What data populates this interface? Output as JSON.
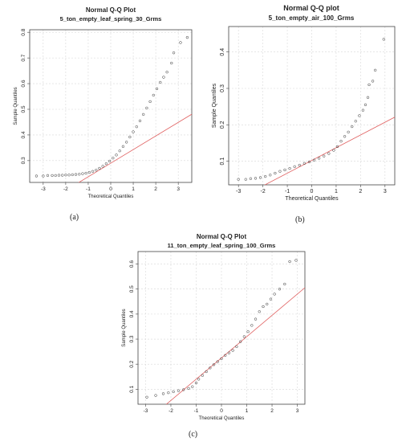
{
  "chart_data": [
    {
      "type": "scatter",
      "panel": "(a)",
      "title": "Normal Q-Q Plot",
      "subtitle": "5_ton_empty_leaf_spring_30_Grms",
      "xlabel": "Theoretical Quantiles",
      "ylabel": "Sample Quantiles",
      "xlim": [
        -3.6,
        3.6
      ],
      "ylim": [
        0.215,
        0.81
      ],
      "xticks": [
        -3,
        -2,
        -1,
        0,
        1,
        2,
        3
      ],
      "yticks": [
        0.3,
        0.4,
        0.5,
        0.6,
        0.7,
        0.8
      ],
      "grid": true,
      "reference_line": {
        "slope": 0.053,
        "intercept": 0.29,
        "color": "#e06060"
      },
      "points": [
        [
          -3.3,
          0.24
        ],
        [
          -3.0,
          0.24
        ],
        [
          -2.8,
          0.242
        ],
        [
          -2.6,
          0.242
        ],
        [
          -2.45,
          0.242
        ],
        [
          -2.3,
          0.243
        ],
        [
          -2.15,
          0.243
        ],
        [
          -2.0,
          0.244
        ],
        [
          -1.85,
          0.244
        ],
        [
          -1.7,
          0.245
        ],
        [
          -1.55,
          0.246
        ],
        [
          -1.4,
          0.247
        ],
        [
          -1.25,
          0.249
        ],
        [
          -1.1,
          0.251
        ],
        [
          -0.95,
          0.254
        ],
        [
          -0.8,
          0.258
        ],
        [
          -0.65,
          0.263
        ],
        [
          -0.5,
          0.27
        ],
        [
          -0.35,
          0.278
        ],
        [
          -0.2,
          0.288
        ],
        [
          -0.05,
          0.298
        ],
        [
          0.1,
          0.31
        ],
        [
          0.25,
          0.322
        ],
        [
          0.4,
          0.338
        ],
        [
          0.55,
          0.355
        ],
        [
          0.7,
          0.372
        ],
        [
          0.85,
          0.392
        ],
        [
          1.0,
          0.412
        ],
        [
          1.15,
          0.432
        ],
        [
          1.3,
          0.455
        ],
        [
          1.45,
          0.48
        ],
        [
          1.6,
          0.505
        ],
        [
          1.75,
          0.53
        ],
        [
          1.9,
          0.555
        ],
        [
          2.05,
          0.58
        ],
        [
          2.2,
          0.605
        ],
        [
          2.35,
          0.625
        ],
        [
          2.5,
          0.645
        ],
        [
          2.7,
          0.68
        ],
        [
          2.8,
          0.72
        ],
        [
          3.1,
          0.76
        ],
        [
          3.4,
          0.78
        ]
      ]
    },
    {
      "type": "scatter",
      "panel": "(b)",
      "title": "Normal Q-Q plot",
      "subtitle": "5_ton_empty_air_100_Grms",
      "xlabel": "Theoretical Quantiles",
      "ylabel": "Sample Quantiles",
      "xlim": [
        -3.4,
        3.4
      ],
      "ylim": [
        0.035,
        0.47
      ],
      "xticks": [
        -3,
        -2,
        -1,
        0,
        1,
        2,
        3
      ],
      "yticks": [
        0.1,
        0.2,
        0.3,
        0.4
      ],
      "grid": true,
      "reference_line": {
        "slope": 0.035,
        "intercept": 0.102,
        "color": "#e06060"
      },
      "points": [
        [
          -3.0,
          0.05
        ],
        [
          -2.7,
          0.05
        ],
        [
          -2.5,
          0.052
        ],
        [
          -2.3,
          0.053
        ],
        [
          -2.1,
          0.055
        ],
        [
          -1.9,
          0.058
        ],
        [
          -1.7,
          0.062
        ],
        [
          -1.5,
          0.067
        ],
        [
          -1.3,
          0.072
        ],
        [
          -1.1,
          0.076
        ],
        [
          -0.9,
          0.08
        ],
        [
          -0.7,
          0.085
        ],
        [
          -0.5,
          0.089
        ],
        [
          -0.3,
          0.094
        ],
        [
          -0.1,
          0.098
        ],
        [
          0.1,
          0.103
        ],
        [
          0.3,
          0.108
        ],
        [
          0.5,
          0.114
        ],
        [
          0.7,
          0.121
        ],
        [
          0.9,
          0.13
        ],
        [
          1.05,
          0.14
        ],
        [
          1.2,
          0.155
        ],
        [
          1.35,
          0.168
        ],
        [
          1.5,
          0.18
        ],
        [
          1.65,
          0.195
        ],
        [
          1.8,
          0.21
        ],
        [
          1.95,
          0.225
        ],
        [
          2.1,
          0.24
        ],
        [
          2.2,
          0.255
        ],
        [
          2.3,
          0.275
        ],
        [
          2.35,
          0.31
        ],
        [
          2.5,
          0.32
        ],
        [
          2.6,
          0.35
        ],
        [
          2.95,
          0.435
        ]
      ]
    },
    {
      "type": "scatter",
      "panel": "(c)",
      "title": "Normal Q-Q Plot",
      "subtitle": "11_ton_empty_leaf_spring_100_Grms",
      "xlabel": "Theoretical Quantiles",
      "ylabel": "Sample Quantiles",
      "xlim": [
        -3.3,
        3.3
      ],
      "ylim": [
        0.04,
        0.65
      ],
      "xticks": [
        -3,
        -2,
        -1,
        0,
        1,
        2,
        3
      ],
      "yticks": [
        0.1,
        0.2,
        0.3,
        0.4,
        0.5,
        0.6
      ],
      "grid": true,
      "reference_line": {
        "slope": 0.085,
        "intercept": 0.225,
        "color": "#e06060"
      },
      "points": [
        [
          -2.95,
          0.068
        ],
        [
          -2.6,
          0.075
        ],
        [
          -2.3,
          0.082
        ],
        [
          -2.1,
          0.086
        ],
        [
          -1.9,
          0.09
        ],
        [
          -1.7,
          0.094
        ],
        [
          -1.5,
          0.098
        ],
        [
          -1.3,
          0.103
        ],
        [
          -1.15,
          0.11
        ],
        [
          -1.0,
          0.125
        ],
        [
          -0.9,
          0.14
        ],
        [
          -0.75,
          0.155
        ],
        [
          -0.6,
          0.17
        ],
        [
          -0.45,
          0.185
        ],
        [
          -0.3,
          0.198
        ],
        [
          -0.15,
          0.21
        ],
        [
          0.0,
          0.222
        ],
        [
          0.15,
          0.235
        ],
        [
          0.3,
          0.245
        ],
        [
          0.45,
          0.255
        ],
        [
          0.6,
          0.27
        ],
        [
          0.75,
          0.29
        ],
        [
          0.9,
          0.31
        ],
        [
          1.05,
          0.33
        ],
        [
          1.2,
          0.355
        ],
        [
          1.35,
          0.38
        ],
        [
          1.5,
          0.41
        ],
        [
          1.65,
          0.43
        ],
        [
          1.8,
          0.44
        ],
        [
          1.95,
          0.46
        ],
        [
          2.1,
          0.48
        ],
        [
          2.3,
          0.5
        ],
        [
          2.5,
          0.52
        ],
        [
          2.7,
          0.61
        ],
        [
          2.95,
          0.615
        ]
      ]
    }
  ],
  "captions": [
    "(a)",
    "(b)",
    "(c)"
  ]
}
